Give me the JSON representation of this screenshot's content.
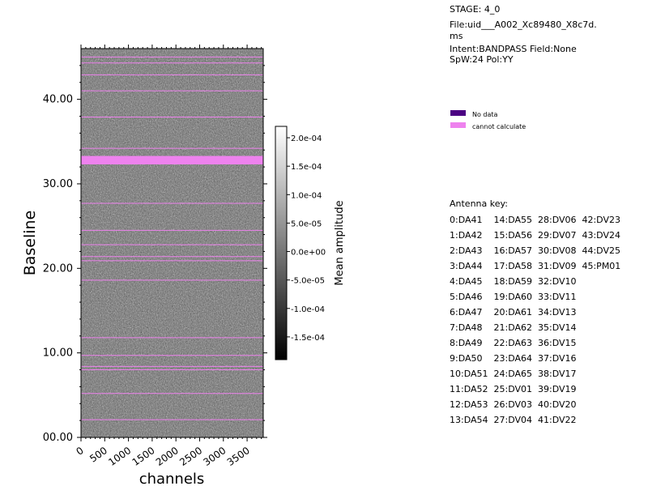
{
  "header": {
    "stage": "STAGE: 4_0",
    "file_line1": "File:uid___A002_Xc89480_X8c7d.",
    "file_line2": "ms",
    "intent": "Intent:BANDPASS Field:None",
    "spw": "SpW:24 Pol:YY"
  },
  "legend": [
    {
      "label": "No data",
      "color": "#4b0082"
    },
    {
      "label": "cannot calculate",
      "color": "#ee82ee"
    }
  ],
  "antenna_key": {
    "title": "Antenna key:",
    "rows": [
      "0:DA41    14:DA55  28:DV06  42:DV23",
      "1:DA42    15:DA56  29:DV07  43:DV24",
      "2:DA43    16:DA57  30:DV08  44:DV25",
      "3:DA44    17:DA58  31:DV09  45:PM01",
      "4:DA45    18:DA59  32:DV10",
      "5:DA46    19:DA60  33:DV11",
      "6:DA47    20:DA61  34:DV13",
      "7:DA48    21:DA62  35:DV14",
      "8:DA49    22:DA63  36:DV15",
      "9:DA50    23:DA64  37:DV16",
      "10:DA51  24:DA65  38:DV17",
      "11:DA52  25:DV01  39:DV19",
      "12:DA53  26:DV03  40:DV20",
      "13:DA54  27:DV04  41:DV22"
    ]
  },
  "chart_data": {
    "type": "heatmap",
    "xlabel": "channels",
    "ylabel": "Baseline",
    "xlim": [
      0,
      3840
    ],
    "ylim": [
      0,
      46
    ],
    "xticks": [
      "0",
      "500",
      "1000",
      "1500",
      "2000",
      "2500",
      "3000",
      "3500"
    ],
    "xtick_values": [
      0,
      500,
      1000,
      1500,
      2000,
      2500,
      3000,
      3500
    ],
    "yticks": [
      "00.00",
      "10.00",
      "20.00",
      "30.00",
      "40.00"
    ],
    "ytick_values": [
      0,
      10,
      20,
      30,
      40
    ],
    "colorbar": {
      "label": "Mean amplitude",
      "range": [
        -0.00019,
        0.00022
      ],
      "ticks": [
        "2.0e-04",
        "1.5e-04",
        "1.0e-04",
        "5.0e-05",
        "0.0e+00",
        "-5.0e-05",
        "-1.0e-04",
        "-1.5e-04"
      ],
      "tick_values": [
        0.0002,
        0.00015,
        0.0001,
        5e-05,
        0,
        -5e-05,
        -0.0001,
        -0.00015
      ],
      "colormap": "gray"
    },
    "cannot_calculate_lines": [
      2.1,
      5.2,
      8.0,
      8.4,
      9.7,
      11.8,
      18.6,
      20.9,
      21.4,
      22.8,
      24.5,
      27.7,
      34.2,
      37.9,
      41.0,
      42.9,
      44.3,
      45.0
    ],
    "cannot_calculate_band": [
      32.3,
      33.3
    ]
  }
}
